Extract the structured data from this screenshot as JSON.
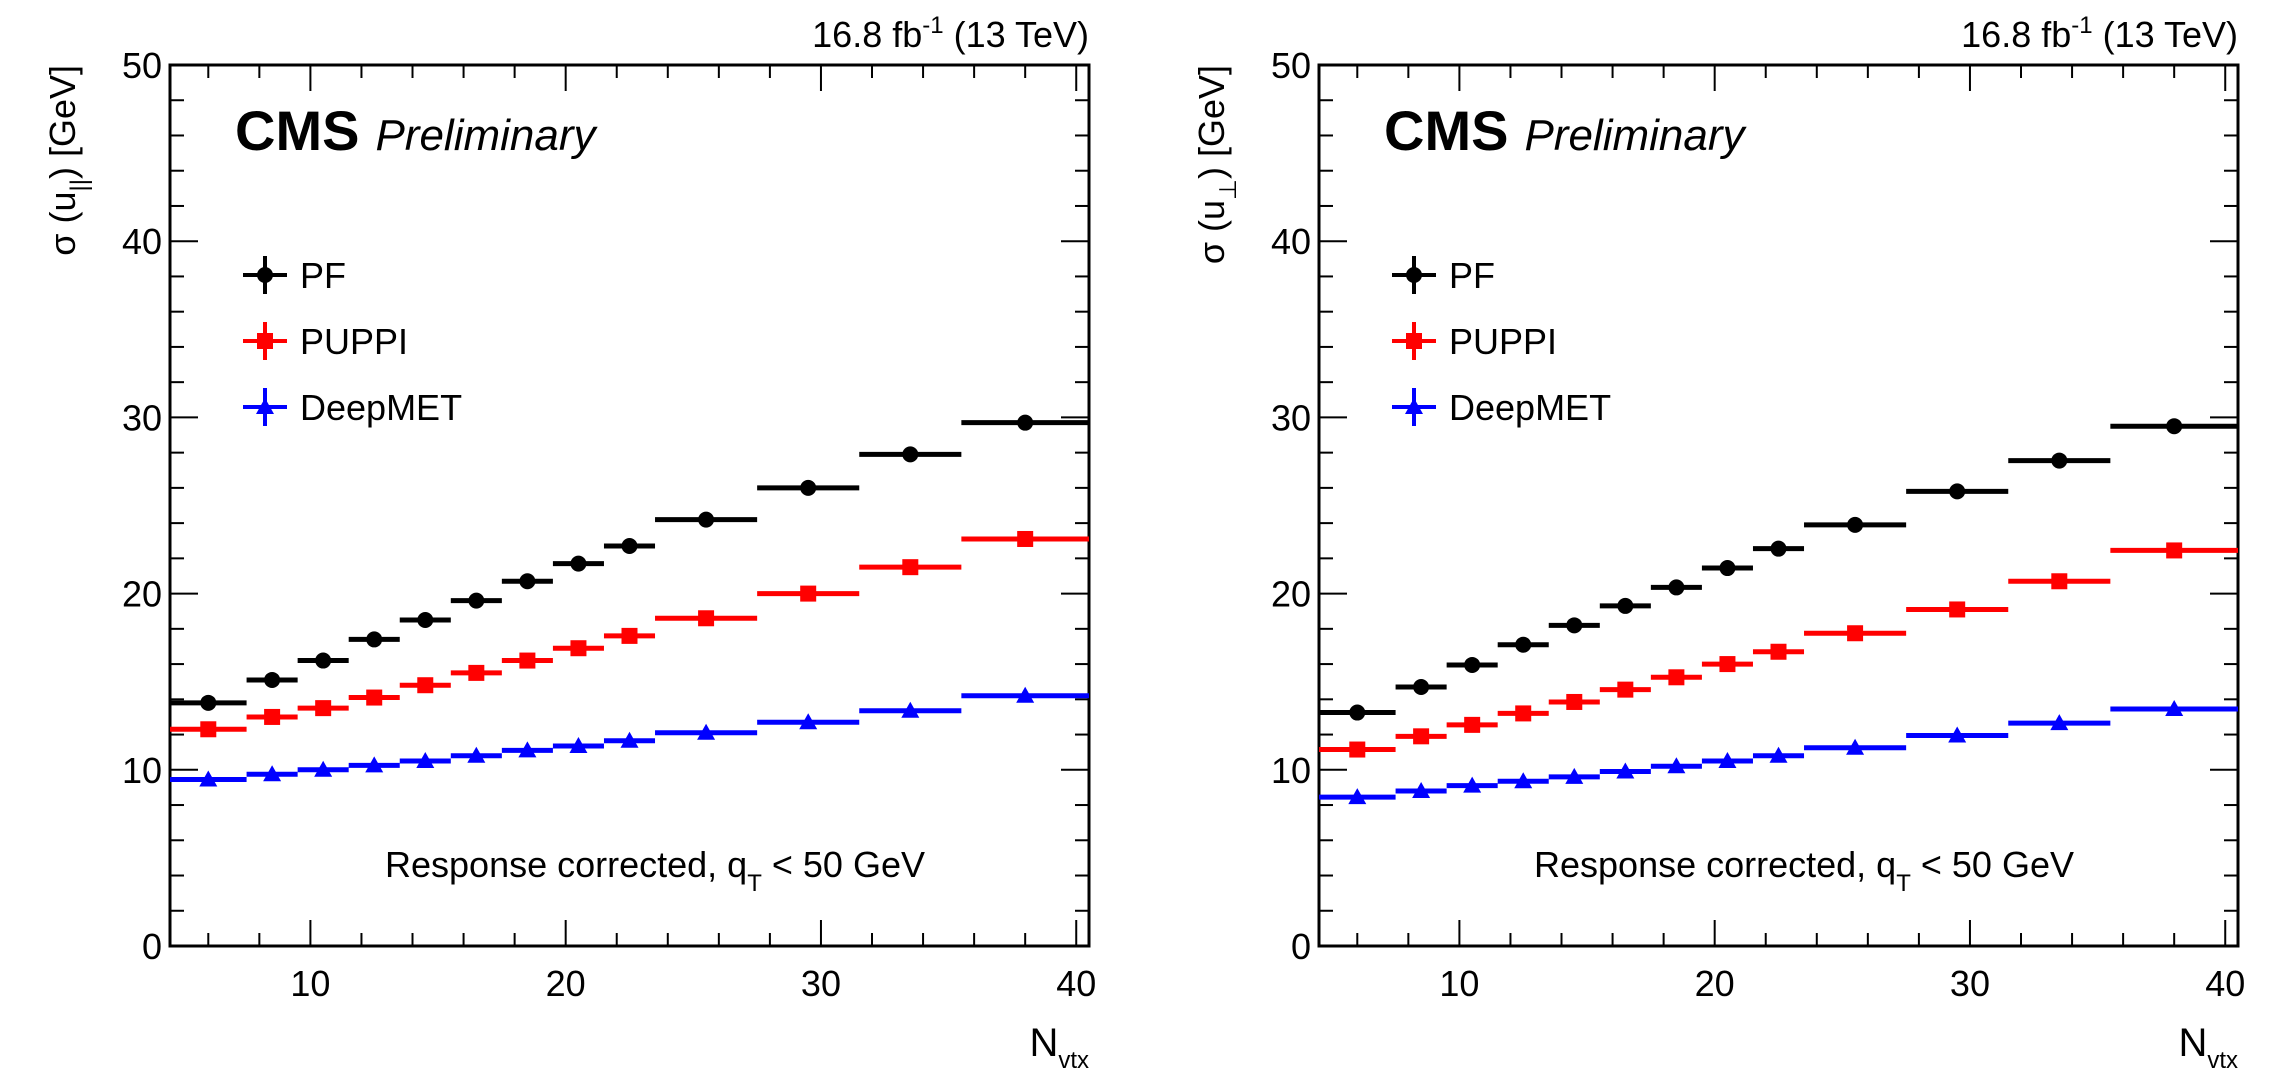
{
  "chart_data": [
    {
      "type": "scatter",
      "panel": "left",
      "lumi_label": "16.8 fb",
      "lumi_exp": "-1",
      "energy_label": " (13 TeV)",
      "cms_label": "CMS",
      "preliminary_label": "Preliminary",
      "ylabel": "σ (u",
      "ylabel_sub": "||",
      "ylabel_suffix": ") [GeV]",
      "xlabel": "N",
      "xlabel_sub": "vtx",
      "annotation": "Response corrected, q",
      "annotation_sub": "T",
      "annotation_suffix": " < 50 GeV",
      "xlim": [
        4.5,
        40.5
      ],
      "ylim": [
        0,
        50
      ],
      "xticks": [
        10,
        20,
        30,
        40
      ],
      "yticks": [
        0,
        10,
        20,
        30,
        40,
        50
      ],
      "legend_position": "top-left",
      "bin_edges": [
        4.5,
        7.5,
        9.5,
        11.5,
        13.5,
        15.5,
        17.5,
        19.5,
        21.5,
        23.5,
        27.5,
        31.5,
        35.5,
        40.5
      ],
      "x_centers": [
        6,
        8.5,
        10.5,
        12.5,
        14.5,
        16.5,
        18.5,
        20.5,
        22.5,
        25.5,
        29.5,
        33.5,
        38
      ],
      "series": [
        {
          "name": "PF",
          "color": "#000000",
          "marker": "circle",
          "values": [
            13.8,
            15.1,
            16.2,
            17.4,
            18.5,
            19.6,
            20.7,
            21.7,
            22.7,
            24.2,
            26.0,
            27.9,
            29.7
          ]
        },
        {
          "name": "PUPPI",
          "color": "#ff0000",
          "marker": "square",
          "values": [
            12.3,
            13.0,
            13.5,
            14.1,
            14.8,
            15.5,
            16.2,
            16.9,
            17.6,
            18.6,
            20.0,
            21.5,
            23.1
          ]
        },
        {
          "name": "DeepMET",
          "color": "#0000ff",
          "marker": "triangle",
          "values": [
            9.45,
            9.75,
            10.0,
            10.25,
            10.5,
            10.8,
            11.1,
            11.35,
            11.65,
            12.1,
            12.7,
            13.35,
            14.2
          ]
        }
      ]
    },
    {
      "type": "scatter",
      "panel": "right",
      "lumi_label": "16.8 fb",
      "lumi_exp": "-1",
      "energy_label": " (13 TeV)",
      "cms_label": "CMS",
      "preliminary_label": "Preliminary",
      "ylabel": "σ (u",
      "ylabel_sub": "⊥",
      "ylabel_suffix": ") [GeV]",
      "xlabel": "N",
      "xlabel_sub": "vtx",
      "annotation": "Response corrected, q",
      "annotation_sub": "T",
      "annotation_suffix": " < 50 GeV",
      "xlim": [
        4.5,
        40.5
      ],
      "ylim": [
        0,
        50
      ],
      "xticks": [
        10,
        20,
        30,
        40
      ],
      "yticks": [
        0,
        10,
        20,
        30,
        40,
        50
      ],
      "legend_position": "top-left",
      "bin_edges": [
        4.5,
        7.5,
        9.5,
        11.5,
        13.5,
        15.5,
        17.5,
        19.5,
        21.5,
        23.5,
        27.5,
        31.5,
        35.5,
        40.5
      ],
      "x_centers": [
        6,
        8.5,
        10.5,
        12.5,
        14.5,
        16.5,
        18.5,
        20.5,
        22.5,
        25.5,
        29.5,
        33.5,
        38
      ],
      "series": [
        {
          "name": "PF",
          "color": "#000000",
          "marker": "circle",
          "values": [
            13.25,
            14.7,
            15.95,
            17.1,
            18.2,
            19.3,
            20.35,
            21.45,
            22.55,
            23.9,
            25.8,
            27.55,
            29.5
          ]
        },
        {
          "name": "PUPPI",
          "color": "#ff0000",
          "marker": "square",
          "values": [
            11.15,
            11.9,
            12.55,
            13.2,
            13.85,
            14.55,
            15.25,
            16.0,
            16.7,
            17.75,
            19.1,
            20.7,
            22.45
          ]
        },
        {
          "name": "DeepMET",
          "color": "#0000ff",
          "marker": "triangle",
          "values": [
            8.45,
            8.8,
            9.1,
            9.35,
            9.6,
            9.9,
            10.2,
            10.5,
            10.8,
            11.25,
            11.95,
            12.65,
            13.45
          ]
        }
      ]
    }
  ]
}
